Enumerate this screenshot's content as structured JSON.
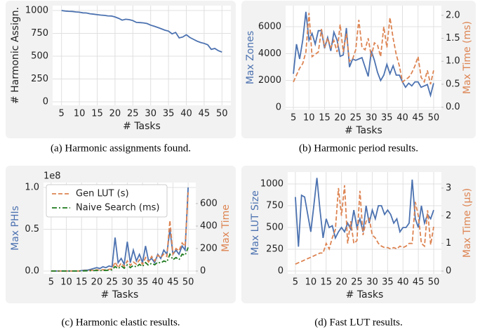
{
  "chart_data": [
    {
      "type": "line",
      "caption": "(a) Harmonic assignments found.",
      "xlabel": "# Tasks",
      "ylabel": "# Harmonic Assign.",
      "grid": true,
      "x": [
        5,
        6,
        7,
        8,
        9,
        10,
        11,
        12,
        13,
        14,
        15,
        16,
        17,
        18,
        19,
        20,
        21,
        22,
        23,
        24,
        25,
        26,
        27,
        28,
        29,
        30,
        31,
        32,
        33,
        34,
        35,
        36,
        37,
        38,
        39,
        40,
        41,
        42,
        43,
        44,
        45,
        46,
        47,
        48,
        49,
        50
      ],
      "xlim": [
        2.5,
        52.5
      ],
      "xticks": [
        5,
        10,
        15,
        20,
        25,
        30,
        35,
        40,
        45,
        50
      ],
      "ylim": [
        -38,
        1054
      ],
      "yticks": [
        0,
        250,
        500,
        750,
        1000
      ],
      "series": [
        {
          "color": "#4c72b0",
          "dash": "solid",
          "values": [
            1000,
            995,
            992,
            990,
            985,
            982,
            975,
            973,
            965,
            960,
            955,
            950,
            947,
            942,
            940,
            930,
            915,
            895,
            905,
            900,
            890,
            870,
            868,
            865,
            858,
            840,
            828,
            815,
            800,
            785,
            775,
            745,
            760,
            700,
            710,
            735,
            705,
            685,
            665,
            650,
            640,
            625,
            575,
            585,
            560,
            545
          ]
        }
      ]
    },
    {
      "type": "line",
      "caption": "(b) Harmonic period results.",
      "xlabel": "# Tasks",
      "ylabel": "Max Zones",
      "y2label": "Max Time (ms)",
      "grid": true,
      "x": [
        5,
        6,
        7,
        8,
        9,
        10,
        11,
        12,
        13,
        14,
        15,
        16,
        17,
        18,
        19,
        20,
        21,
        22,
        23,
        24,
        25,
        26,
        27,
        28,
        29,
        30,
        31,
        32,
        33,
        34,
        35,
        36,
        37,
        38,
        39,
        40,
        41,
        42,
        43,
        44,
        45,
        46,
        47,
        48,
        49,
        50
      ],
      "xlim": [
        2.5,
        52.5
      ],
      "xticks": [
        5,
        10,
        15,
        20,
        25,
        30,
        35,
        40,
        45,
        50
      ],
      "ylim": [
        -156,
        7565
      ],
      "yticks": [
        0,
        2000,
        4000,
        6000
      ],
      "y2lim": [
        -0.05,
        2.21
      ],
      "y2ticks": [
        {
          "value": 0,
          "label": "0.0"
        },
        0.5,
        {
          "value": 1,
          "label": "1.0"
        },
        1.5,
        {
          "value": 2,
          "label": "2.0"
        }
      ],
      "series": [
        {
          "color": "#4c72b0",
          "dash": "solid",
          "values": [
            2500,
            4700,
            3600,
            5000,
            7100,
            5000,
            5500,
            4700,
            5700,
            5700,
            4400,
            5200,
            4200,
            5600,
            5000,
            3800,
            3900,
            5900,
            3000,
            3600,
            3500,
            3600,
            3700,
            3000,
            2300,
            4200,
            3500,
            2600,
            2000,
            2400,
            3200,
            2500,
            3100,
            2400,
            2400,
            1900,
            1500,
            1800,
            1600,
            1900,
            1900,
            1500,
            1600,
            1700,
            900,
            1800
          ]
        },
        {
          "color": "#dd8452",
          "dash": "dashed",
          "axis": "y2",
          "values": [
            0.55,
            0.7,
            0.85,
            0.95,
            1.2,
            2.05,
            1.1,
            1.15,
            1.2,
            1.7,
            1.3,
            1.5,
            1.3,
            1.45,
            1.2,
            1.8,
            1.2,
            1.6,
            1.0,
            1.05,
            1.25,
            1.9,
            1.3,
            1.25,
            1.5,
            1.1,
            1.4,
            1.35,
            1.1,
            1.75,
            1.3,
            1.95,
            1.5,
            1.15,
            0.9,
            0.55,
            0.6,
            0.65,
            0.75,
            0.9,
            1.1,
            0.65,
            0.55,
            0.8,
            0.5,
            0.8
          ]
        }
      ]
    },
    {
      "type": "line",
      "caption": "(c) Harmonic elastic results.",
      "xlabel": "# Tasks",
      "ylabel": "Max PHIs",
      "y_offset_label": "1e8",
      "y2label": "Max Time",
      "grid": true,
      "legend": "upper left",
      "x": [
        5,
        6,
        7,
        8,
        9,
        10,
        11,
        12,
        13,
        14,
        15,
        16,
        17,
        18,
        19,
        20,
        21,
        22,
        23,
        24,
        25,
        26,
        27,
        28,
        29,
        30,
        31,
        32,
        33,
        34,
        35,
        36,
        37,
        38,
        39,
        40,
        41,
        42,
        43,
        44,
        45,
        46,
        47,
        48,
        49,
        50
      ],
      "xlim": [
        2.5,
        52.5
      ],
      "xticks": [
        5,
        10,
        15,
        20,
        25,
        30,
        35,
        40,
        45,
        50
      ],
      "ylim": [
        -0.034,
        1.059
      ],
      "yticks": [
        {
          "value": 0,
          "label": "0.0"
        },
        0.5,
        {
          "value": 1,
          "label": "1.0"
        }
      ],
      "y2lim": [
        -25,
        787
      ],
      "y2ticks": [
        0,
        200,
        400,
        600
      ],
      "series": [
        {
          "color": "#4c72b0",
          "dash": "solid",
          "values": [
            0,
            0,
            0,
            0,
            0,
            0,
            0,
            0,
            0,
            0,
            0.005,
            0.01,
            0.01,
            0.02,
            0.03,
            0.04,
            0.03,
            0.05,
            0.04,
            0.06,
            0.05,
            0.4,
            0.1,
            0.15,
            0.08,
            0.35,
            0.1,
            0.25,
            0.12,
            0.2,
            0.1,
            0.3,
            0.12,
            0.15,
            0.1,
            0.2,
            0.15,
            0.25,
            0.2,
            0.5,
            0.2,
            0.25,
            0.2,
            0.3,
            0.25,
            1.0
          ]
        },
        {
          "name": "Gen LUT (s)",
          "color": "#dd8452",
          "dash": "dashed",
          "axis": "y2",
          "values": [
            0,
            0,
            0,
            0,
            0,
            0,
            0,
            0,
            0,
            0,
            2,
            3,
            4,
            6,
            8,
            10,
            8,
            12,
            10,
            15,
            20,
            80,
            30,
            70,
            40,
            90,
            50,
            80,
            60,
            100,
            60,
            120,
            80,
            130,
            90,
            140,
            120,
            150,
            130,
            450,
            150,
            200,
            180,
            250,
            220,
            700
          ]
        },
        {
          "name": "Naive Search (ms)",
          "color": "#1f7a1f",
          "dash": "dashdot",
          "axis": "y2",
          "values": [
            0,
            0,
            0,
            0,
            0,
            0,
            0,
            0,
            0,
            0,
            1,
            1,
            2,
            3,
            4,
            5,
            4,
            6,
            5,
            8,
            10,
            40,
            20,
            45,
            25,
            55,
            30,
            50,
            35,
            60,
            40,
            75,
            50,
            70,
            55,
            80,
            70,
            90,
            80,
            150,
            100,
            120,
            100,
            150,
            140,
            210
          ]
        }
      ]
    },
    {
      "type": "line",
      "caption": "(d) Fast LUT results.",
      "xlabel": "# Tasks",
      "ylabel": "Max LUT Size",
      "y2label": "Max Time (μs)",
      "grid": true,
      "x": [
        5,
        6,
        7,
        8,
        9,
        10,
        11,
        12,
        13,
        14,
        15,
        16,
        17,
        18,
        19,
        20,
        21,
        22,
        23,
        24,
        25,
        26,
        27,
        28,
        29,
        30,
        31,
        32,
        33,
        34,
        35,
        36,
        37,
        38,
        39,
        40,
        41,
        42,
        43,
        44,
        45,
        46,
        47,
        48,
        49,
        50
      ],
      "xlim": [
        2.5,
        52.5
      ],
      "xticks": [
        5,
        10,
        15,
        20,
        25,
        30,
        35,
        40,
        45,
        50
      ],
      "ylim": [
        -32,
        1137
      ],
      "yticks": [
        0,
        250,
        500,
        750,
        1000
      ],
      "y2lim": [
        -0.1,
        3.58
      ],
      "y2ticks": [
        0,
        1,
        2,
        3
      ],
      "series": [
        {
          "color": "#4c72b0",
          "dash": "solid",
          "values": [
            850,
            280,
            870,
            850,
            650,
            450,
            750,
            1070,
            700,
            380,
            600,
            500,
            520,
            380,
            450,
            500,
            450,
            550,
            480,
            700,
            500,
            600,
            450,
            750,
            550,
            700,
            600,
            750,
            750,
            650,
            700,
            650,
            550,
            600,
            450,
            500,
            500,
            550,
            1050,
            600,
            500,
            750,
            550,
            650,
            600,
            700
          ]
        },
        {
          "color": "#dd8452",
          "dash": "dashed",
          "axis": "y2",
          "values": [
            0.25,
            0.3,
            0.35,
            0.4,
            0.45,
            0.5,
            0.55,
            0.6,
            0.65,
            0.65,
            1.0,
            0.8,
            1.2,
            1.5,
            3.0,
            2.0,
            3.1,
            1.0,
            1.8,
            1.0,
            1.1,
            2.9,
            1.3,
            1.8,
            1.9,
            1.3,
            1.2,
            1.0,
            0.9,
            0.85,
            0.85,
            0.8,
            0.85,
            0.8,
            0.9,
            0.85,
            0.9,
            1.0,
            1.0,
            2.5,
            2.0,
            1.0,
            0.9,
            2.2,
            0.95,
            1.6
          ]
        }
      ]
    }
  ]
}
